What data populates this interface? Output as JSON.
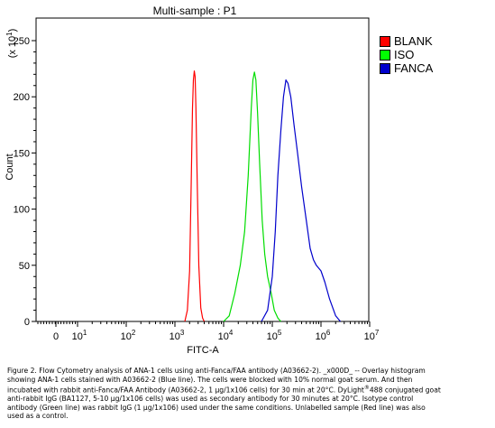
{
  "chart_data": {
    "type": "line",
    "title": "Multi-sample : P1",
    "xlabel": "FITC-A",
    "ylabel": "Count",
    "y_multiplier": "(x 10",
    "y_multiplier_exp": "1",
    "xscale": "log",
    "xlim": [
      -500,
      10000000
    ],
    "ylim": [
      0,
      260
    ],
    "x_ticks": [
      {
        "value": 0,
        "base": "0",
        "exp": ""
      },
      {
        "value": 10,
        "base": "10",
        "exp": "1"
      },
      {
        "value": 100,
        "base": "10",
        "exp": "2"
      },
      {
        "value": 1000,
        "base": "10",
        "exp": "3"
      },
      {
        "value": 10000,
        "base": "10",
        "exp": "4"
      },
      {
        "value": 100000,
        "base": "10",
        "exp": "5"
      },
      {
        "value": 1000000,
        "base": "10",
        "exp": "6"
      },
      {
        "value": 10000000,
        "base": "10",
        "exp": "7"
      }
    ],
    "y_ticks": [
      0,
      50,
      100,
      150,
      200,
      250
    ],
    "legend_position": "right",
    "series": [
      {
        "name": "BLANK",
        "color": "#ff0000",
        "x": [
          1600,
          1800,
          2000,
          2150,
          2300,
          2400,
          2500,
          2600,
          2700,
          2850,
          3100,
          3400,
          3700,
          4000
        ],
        "y": [
          0,
          10,
          45,
          120,
          190,
          215,
          223,
          218,
          190,
          130,
          50,
          12,
          3,
          0
        ]
      },
      {
        "name": "ISO",
        "color": "#00dd00",
        "x": [
          10000,
          13000,
          17000,
          22000,
          27000,
          32000,
          37000,
          40000,
          43000,
          46000,
          50000,
          55000,
          62000,
          70000,
          80000,
          95000,
          110000,
          130000,
          150000
        ],
        "y": [
          0,
          5,
          25,
          50,
          80,
          130,
          190,
          215,
          222,
          215,
          185,
          140,
          90,
          60,
          40,
          25,
          10,
          3,
          0
        ]
      },
      {
        "name": "FANCA",
        "color": "#0000cc",
        "x": [
          60000,
          80000,
          100000,
          115000,
          130000,
          150000,
          170000,
          190000,
          210000,
          240000,
          280000,
          330000,
          400000,
          500000,
          600000,
          700000,
          800000,
          1000000,
          1200000,
          1500000,
          2000000,
          2500000
        ],
        "y": [
          0,
          10,
          40,
          80,
          130,
          170,
          200,
          215,
          212,
          200,
          175,
          150,
          120,
          90,
          65,
          55,
          50,
          45,
          35,
          20,
          5,
          0
        ]
      }
    ]
  },
  "caption": {
    "line1_a": "Figure 2. Flow Cytometry analysis of ANA-1 cells using anti-Fanca/FAA antibody (A03662-2).  _x000D_ -- Overlay histogram",
    "line2": "showing ANA-1 cells stained with A03662-2 (Blue line). The cells were blocked with 10% normal goat serum. And then",
    "line3_a": "incubated with rabbit anti-Fanca/FAA Antibody (A03662-2, 1 μg/1x106 cells) for 30 min at 20°C. DyLight",
    "line3_sup": "®",
    "line3_b": "488 conjugated goat",
    "line4": "anti-rabbit IgG (BA1127, 5-10 μg/1x106 cells) was used as secondary antibody for 30 minutes at 20°C. Isotype control",
    "line5": "antibody (Green line) was rabbit IgG (1 μg/1x106) used under the same conditions. Unlabelled sample (Red line) was also",
    "line6": "used as a control."
  }
}
